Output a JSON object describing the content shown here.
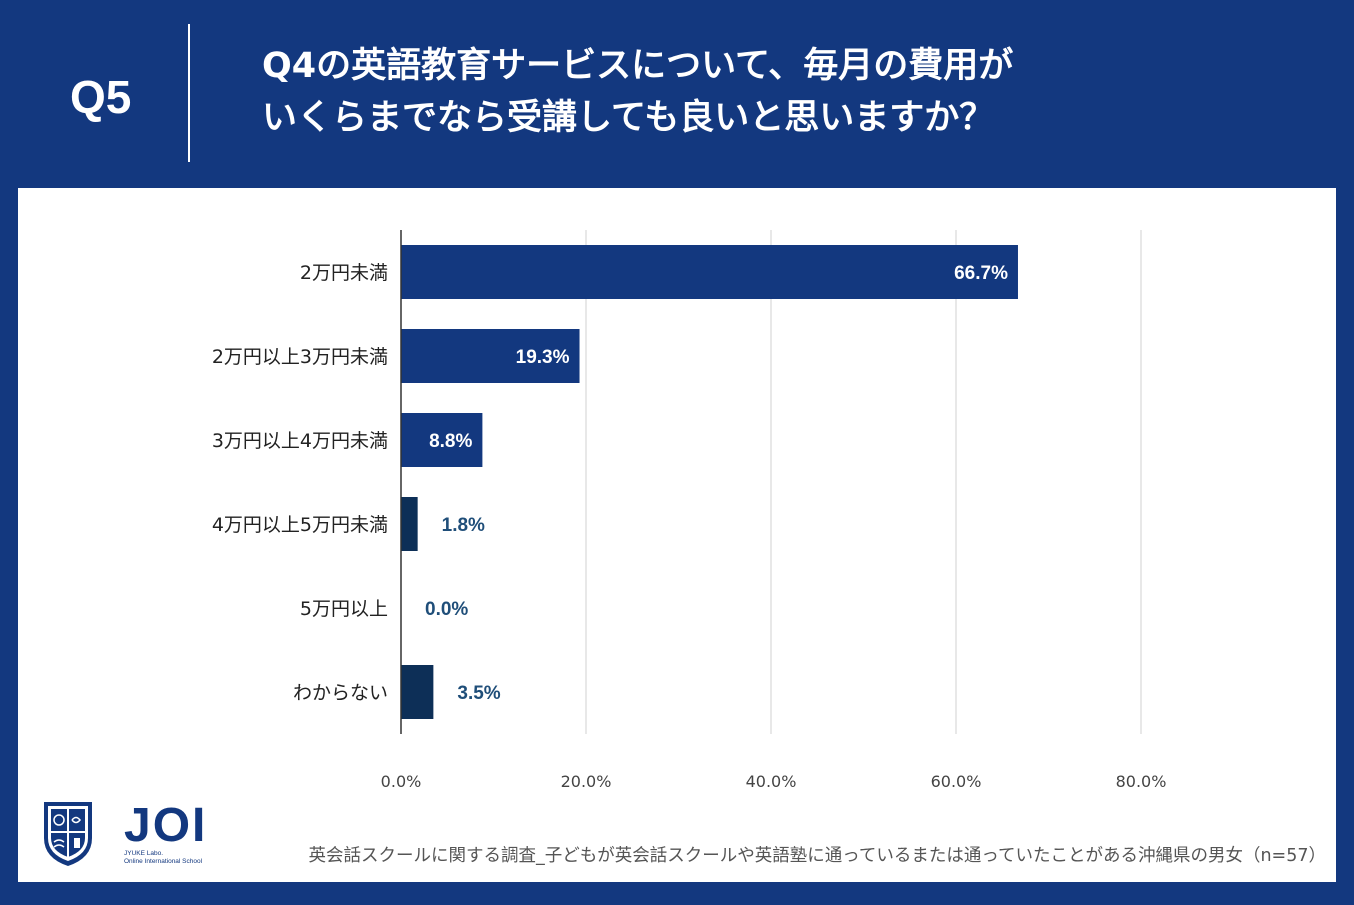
{
  "header": {
    "q_label": "Q5",
    "question_line1": "Q4の英語教育サービスについて、毎月の費用が",
    "question_line2": "いくらまでなら受講しても良いと思いますか？"
  },
  "colors": {
    "background": "#13387f",
    "bar_dark": "#13387f",
    "bar_darkest": "#0d2f57",
    "value_label_outside": "#1f4e79"
  },
  "chart_data": {
    "type": "bar",
    "orientation": "horizontal",
    "categories": [
      "2万円未満",
      "2万円以上3万円未満",
      "3万円以上4万円未満",
      "4万円以上5万円未満",
      "5万円以上",
      "わからない"
    ],
    "values": [
      66.7,
      19.3,
      8.8,
      1.8,
      0.0,
      3.5
    ],
    "value_labels": [
      "66.7%",
      "19.3%",
      "8.8%",
      "1.8%",
      "0.0%",
      "3.5%"
    ],
    "xlim": [
      0,
      80
    ],
    "x_ticks": [
      0,
      20,
      40,
      60,
      80
    ],
    "x_tick_labels": [
      "0.0%",
      "20.0%",
      "40.0%",
      "60.0%",
      "80.0%"
    ],
    "grid": true
  },
  "logo": {
    "name": "JOI",
    "sub_line1": "JYUKE Labo.",
    "sub_line2": "Online International School"
  },
  "footnote": "英会話スクールに関する調査_子どもが英会話スクールや英語塾に通っているまたは通っていたことがある沖縄県の男女（n=57）"
}
